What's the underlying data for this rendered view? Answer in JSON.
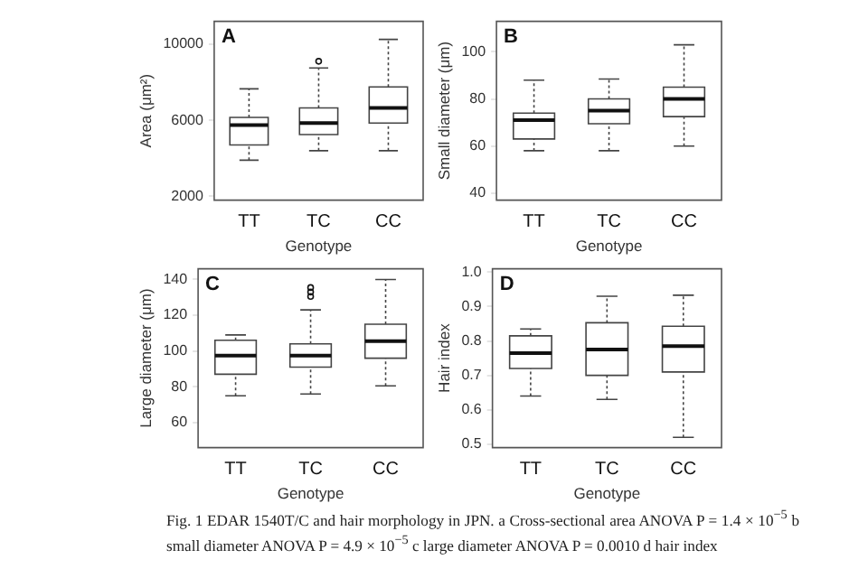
{
  "chart_data": [
    {
      "type": "box",
      "annotations": [
        "A"
      ],
      "xlabel": "Genotype",
      "ylabel": "Area (μm²)",
      "categories": [
        "TT",
        "TC",
        "CC"
      ],
      "ylim": [
        1800,
        11200
      ],
      "yticks": [
        2000,
        6000,
        10000
      ],
      "boxes": [
        {
          "low": 3900,
          "q1": 4700,
          "median": 5750,
          "q3": 6150,
          "high": 7650
        },
        {
          "low": 4400,
          "q1": 5250,
          "median": 5850,
          "q3": 6650,
          "high": 8750,
          "outliers": [
            9100
          ]
        },
        {
          "low": 4400,
          "q1": 5850,
          "median": 6650,
          "q3": 7750,
          "high": 10250
        }
      ]
    },
    {
      "type": "box",
      "annotations": [
        "B"
      ],
      "xlabel": "Genotype",
      "ylabel": "Small diameter (μm)",
      "categories": [
        "TT",
        "TC",
        "CC"
      ],
      "ylim": [
        37,
        113
      ],
      "yticks": [
        40,
        60,
        80,
        100
      ],
      "boxes": [
        {
          "low": 58,
          "q1": 63,
          "median": 71,
          "q3": 74,
          "high": 88
        },
        {
          "low": 58,
          "q1": 69.5,
          "median": 75,
          "q3": 80,
          "high": 88.5
        },
        {
          "low": 60,
          "q1": 72.5,
          "median": 80,
          "q3": 85,
          "high": 103
        }
      ]
    },
    {
      "type": "box",
      "annotations": [
        "C"
      ],
      "xlabel": "Genotype",
      "ylabel": "Large diameter (μm)",
      "categories": [
        "TT",
        "TC",
        "CC"
      ],
      "ylim": [
        46,
        146
      ],
      "yticks": [
        60,
        80,
        100,
        120,
        140
      ],
      "boxes": [
        {
          "low": 75,
          "q1": 87,
          "median": 97.5,
          "q3": 106,
          "high": 109
        },
        {
          "low": 76,
          "q1": 91,
          "median": 97.5,
          "q3": 104,
          "high": 123,
          "outliers": [
            130.5,
            133,
            135.5
          ]
        },
        {
          "low": 80.5,
          "q1": 96,
          "median": 105.5,
          "q3": 115,
          "high": 140
        }
      ]
    },
    {
      "type": "box",
      "annotations": [
        "D"
      ],
      "xlabel": "Genotype",
      "ylabel": "Hair index",
      "categories": [
        "TT",
        "TC",
        "CC"
      ],
      "ylim": [
        0.49,
        1.01
      ],
      "yticks": [
        0.5,
        0.6,
        0.7,
        0.8,
        0.9,
        {
          "value": 1,
          "label": "1.0"
        }
      ],
      "boxes": [
        {
          "low": 0.64,
          "q1": 0.72,
          "median": 0.765,
          "q3": 0.815,
          "high": 0.835
        },
        {
          "low": 0.63,
          "q1": 0.7,
          "median": 0.775,
          "q3": 0.853,
          "high": 0.93
        },
        {
          "low": 0.52,
          "q1": 0.71,
          "median": 0.785,
          "q3": 0.843,
          "high": 0.933
        }
      ]
    },
    {
      "type": "other",
      "annotations": [
        "Fig. 1 EDAR 1540T/C and hair morphology in JPN. a Cross-sectional area ANOVA P = 1.4 × 10$^{−5}$ b small diameter ANOVA P = 4.9 × 10$^{−5}$ c large diameter ANOVA P = 0.0010 d hair index"
      ]
    }
  ]
}
